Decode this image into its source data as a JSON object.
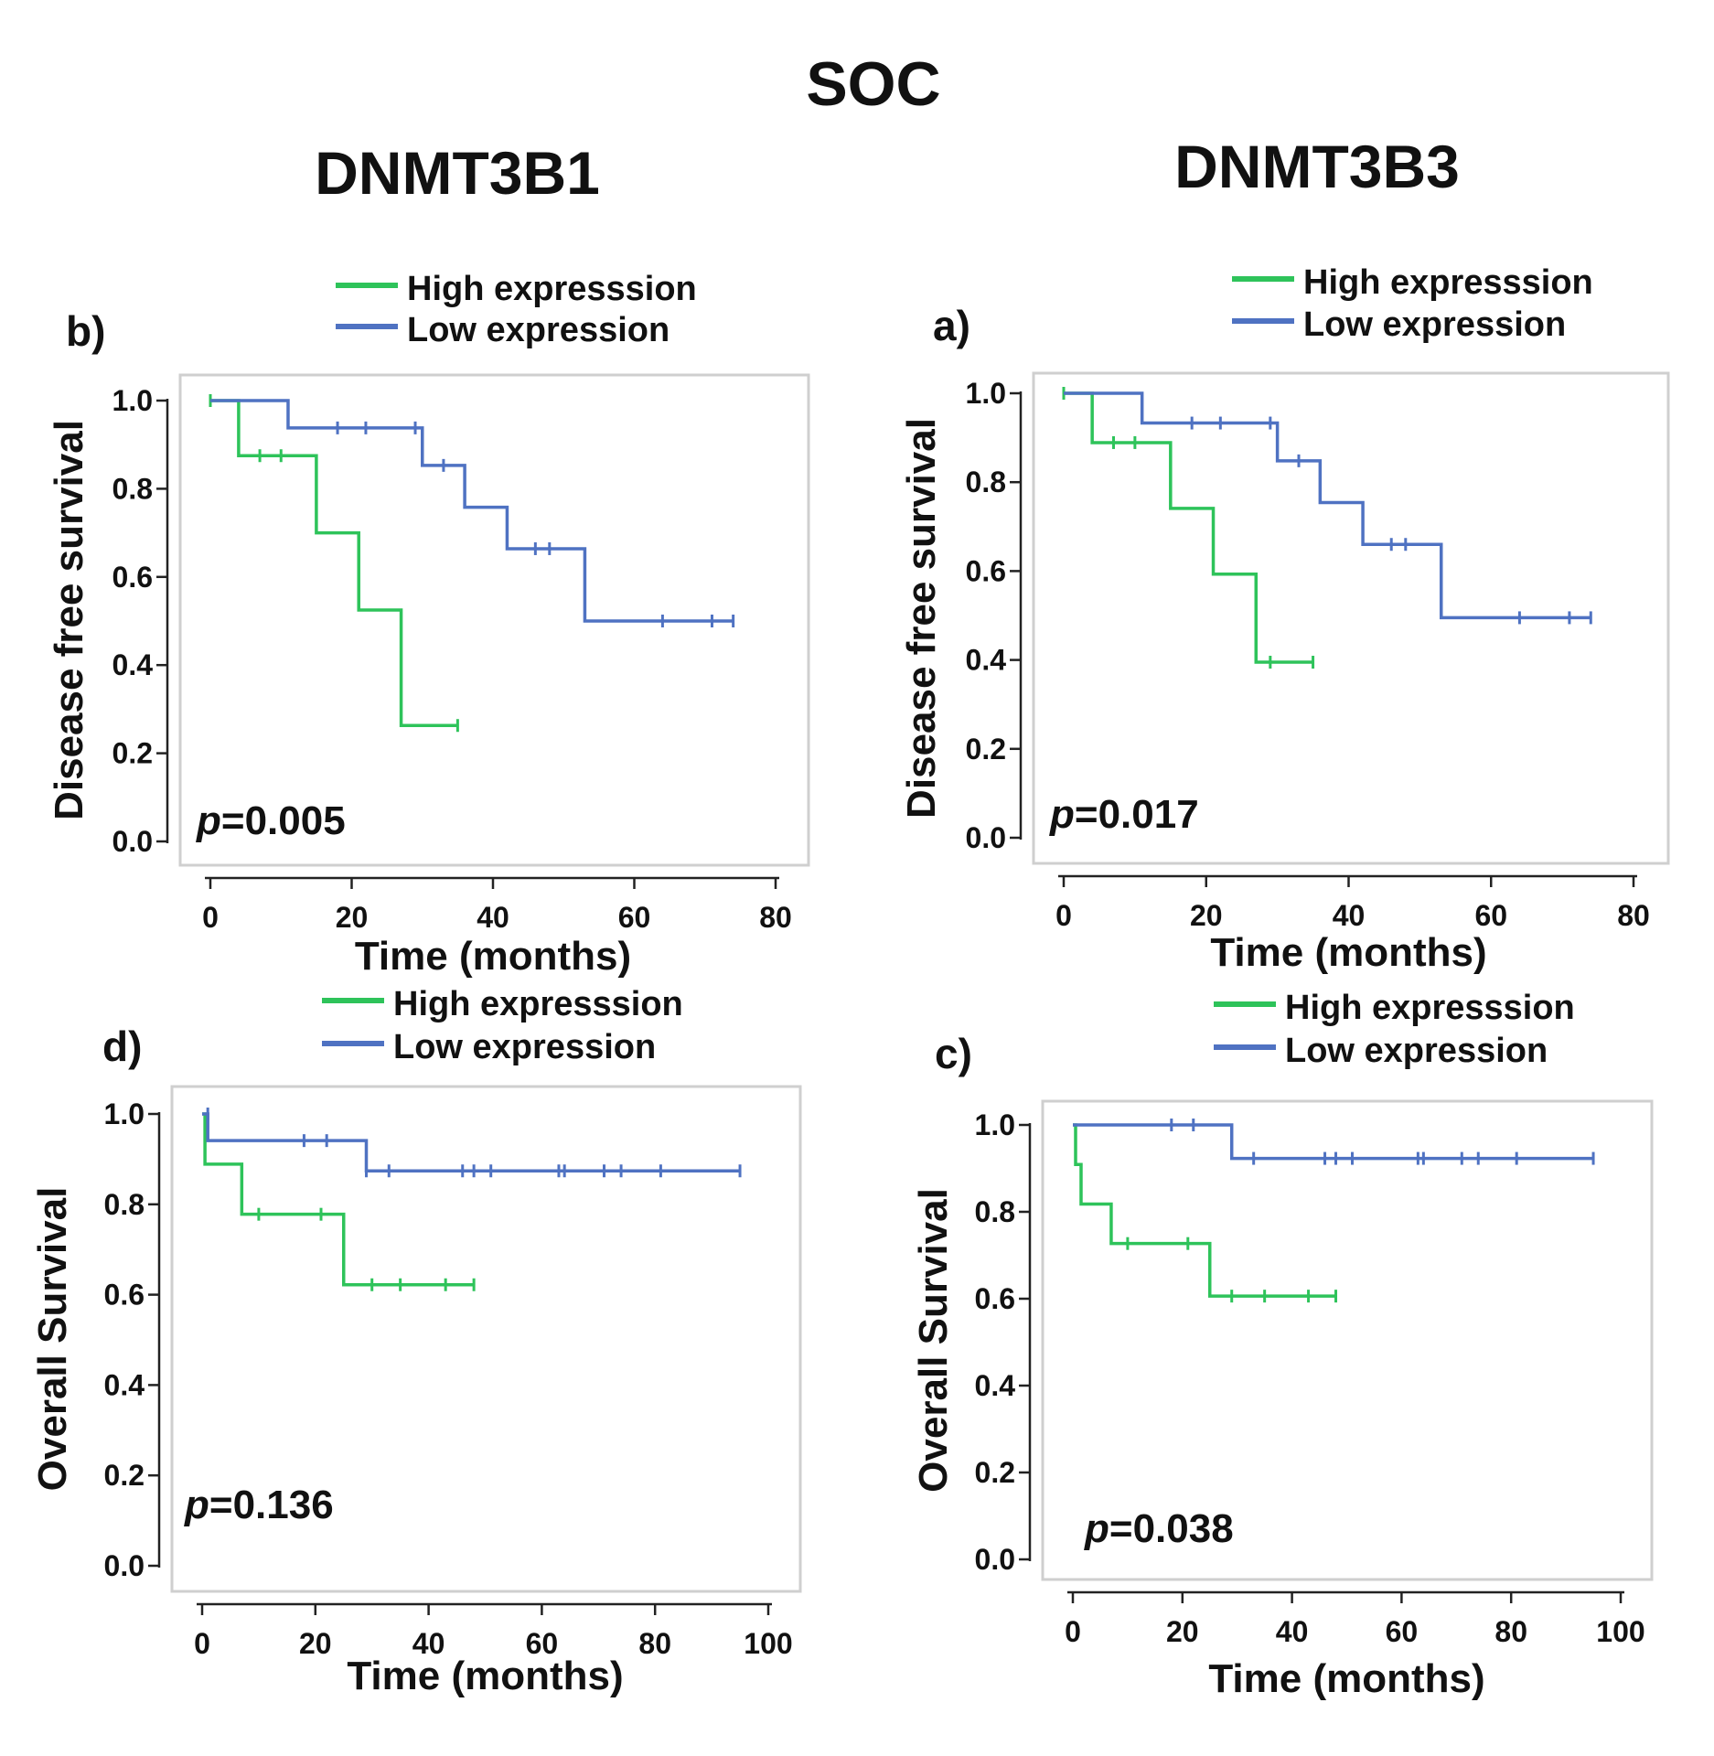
{
  "figure": {
    "title": "SOC",
    "columns": [
      "DNMT3B1",
      "DNMT3B3"
    ]
  },
  "colors": {
    "high": "#2ec35a",
    "low": "#4f72c2"
  },
  "chart_data": [
    {
      "panel": "b)",
      "column": "DNMT3B1",
      "type": "line",
      "kind": "kaplan-meier",
      "xlabel": "Time (months)",
      "ylabel": "Disease free survival",
      "xlim": [
        0,
        80
      ],
      "ylim": [
        0,
        1
      ],
      "xticks": [
        "0",
        "20",
        "40",
        "60",
        "80"
      ],
      "yticks": [
        "0.0",
        "0.2",
        "0.4",
        "0.6",
        "0.8",
        "1.0"
      ],
      "p_prefix": "p",
      "p_value": "=0.005",
      "legend": [
        "High expresssion",
        "Low expression"
      ],
      "series": [
        {
          "name": "High expresssion",
          "key": "high",
          "steps": [
            [
              0,
              1.0
            ],
            [
              4,
              0.875
            ],
            [
              15,
              0.7
            ],
            [
              21,
              0.525
            ],
            [
              27,
              0.263
            ],
            [
              35,
              0.263
            ]
          ],
          "censors": [
            [
              0,
              1.0
            ],
            [
              7,
              0.875
            ],
            [
              10,
              0.875
            ],
            [
              35,
              0.263
            ]
          ]
        },
        {
          "name": "Low expression",
          "key": "low",
          "steps": [
            [
              0,
              1.0
            ],
            [
              11,
              0.938
            ],
            [
              30,
              0.853
            ],
            [
              36,
              0.758
            ],
            [
              42,
              0.664
            ],
            [
              53,
              0.5
            ],
            [
              74,
              0.5
            ]
          ],
          "censors": [
            [
              18,
              0.938
            ],
            [
              22,
              0.938
            ],
            [
              29,
              0.938
            ],
            [
              33,
              0.853
            ],
            [
              46,
              0.664
            ],
            [
              48,
              0.664
            ],
            [
              64,
              0.5
            ],
            [
              71,
              0.5
            ],
            [
              74,
              0.5
            ]
          ]
        }
      ]
    },
    {
      "panel": "a)",
      "column": "DNMT3B3",
      "type": "line",
      "kind": "kaplan-meier",
      "xlabel": "Time (months)",
      "ylabel": "Disease free survival",
      "xlim": [
        0,
        80
      ],
      "ylim": [
        0,
        1
      ],
      "xticks": [
        "0",
        "20",
        "40",
        "60",
        "80"
      ],
      "yticks": [
        "0.0",
        "0.2",
        "0.4",
        "0.6",
        "0.8",
        "1.0"
      ],
      "p_prefix": "p",
      "p_value": "=0.017",
      "legend": [
        "High expresssion",
        "Low expression"
      ],
      "series": [
        {
          "name": "High expresssion",
          "key": "high",
          "steps": [
            [
              0,
              1.0
            ],
            [
              4,
              0.889
            ],
            [
              15,
              0.741
            ],
            [
              21,
              0.593
            ],
            [
              27,
              0.395
            ],
            [
              35,
              0.395
            ]
          ],
          "censors": [
            [
              0,
              1.0
            ],
            [
              7,
              0.889
            ],
            [
              10,
              0.889
            ],
            [
              29,
              0.395
            ],
            [
              35,
              0.395
            ]
          ]
        },
        {
          "name": "Low expression",
          "key": "low",
          "steps": [
            [
              0,
              1.0
            ],
            [
              11,
              0.933
            ],
            [
              30,
              0.848
            ],
            [
              36,
              0.754
            ],
            [
              42,
              0.66
            ],
            [
              53,
              0.495
            ],
            [
              74,
              0.495
            ]
          ],
          "censors": [
            [
              18,
              0.933
            ],
            [
              22,
              0.933
            ],
            [
              29,
              0.933
            ],
            [
              33,
              0.848
            ],
            [
              46,
              0.66
            ],
            [
              48,
              0.66
            ],
            [
              64,
              0.495
            ],
            [
              71,
              0.495
            ],
            [
              74,
              0.495
            ]
          ]
        }
      ]
    },
    {
      "panel": "d)",
      "column": "DNMT3B1",
      "type": "line",
      "kind": "kaplan-meier",
      "xlabel": "Time (months)",
      "ylabel": "Overall Survival",
      "xlim": [
        0,
        100
      ],
      "ylim": [
        0,
        1
      ],
      "xticks": [
        "0",
        "20",
        "40",
        "60",
        "80",
        "100"
      ],
      "yticks": [
        "0.0",
        "0.2",
        "0.4",
        "0.6",
        "0.8",
        "1.0"
      ],
      "p_prefix": "p",
      "p_value": "=0.136",
      "legend": [
        "High expresssion",
        "Low expression"
      ],
      "series": [
        {
          "name": "High expresssion",
          "key": "high",
          "steps": [
            [
              0,
              1.0
            ],
            [
              0.5,
              0.889
            ],
            [
              7,
              0.778
            ],
            [
              25,
              0.622
            ],
            [
              48,
              0.622
            ]
          ],
          "censors": [
            [
              10,
              0.778
            ],
            [
              21,
              0.778
            ],
            [
              30,
              0.622
            ],
            [
              35,
              0.622
            ],
            [
              43,
              0.622
            ],
            [
              48,
              0.622
            ]
          ]
        },
        {
          "name": "Low expression",
          "key": "low",
          "steps": [
            [
              0,
              1.0
            ],
            [
              1,
              0.941
            ],
            [
              29,
              0.874
            ],
            [
              95,
              0.874
            ]
          ],
          "censors": [
            [
              1,
              1.0
            ],
            [
              18,
              0.941
            ],
            [
              22,
              0.941
            ],
            [
              29,
              0.874
            ],
            [
              33,
              0.874
            ],
            [
              46,
              0.874
            ],
            [
              48,
              0.874
            ],
            [
              51,
              0.874
            ],
            [
              63,
              0.874
            ],
            [
              64,
              0.874
            ],
            [
              71,
              0.874
            ],
            [
              74,
              0.874
            ],
            [
              81,
              0.874
            ],
            [
              95,
              0.874
            ]
          ]
        }
      ]
    },
    {
      "panel": "c)",
      "column": "DNMT3B3",
      "type": "line",
      "kind": "kaplan-meier",
      "xlabel": "Time (months)",
      "ylabel": "Overall Survival",
      "xlim": [
        0,
        100
      ],
      "ylim": [
        0,
        1
      ],
      "xticks": [
        "0",
        "20",
        "40",
        "60",
        "80",
        "100"
      ],
      "yticks": [
        "0.0",
        "0.2",
        "0.4",
        "0.6",
        "0.8",
        "1.0"
      ],
      "p_prefix": "p",
      "p_value": "=0.038",
      "legend": [
        "High expresssion",
        "Low expression"
      ],
      "series": [
        {
          "name": "High expresssion",
          "key": "high",
          "steps": [
            [
              0,
              1.0
            ],
            [
              0.5,
              0.909
            ],
            [
              1.5,
              0.818
            ],
            [
              7,
              0.727
            ],
            [
              25,
              0.606
            ],
            [
              48,
              0.606
            ]
          ],
          "censors": [
            [
              10,
              0.727
            ],
            [
              21,
              0.727
            ],
            [
              29,
              0.606
            ],
            [
              35,
              0.606
            ],
            [
              43,
              0.606
            ],
            [
              48,
              0.606
            ]
          ]
        },
        {
          "name": "Low expression",
          "key": "low",
          "steps": [
            [
              0,
              1.0
            ],
            [
              29,
              0.923
            ],
            [
              95,
              0.923
            ]
          ],
          "censors": [
            [
              18,
              1.0
            ],
            [
              22,
              1.0
            ],
            [
              33,
              0.923
            ],
            [
              46,
              0.923
            ],
            [
              48,
              0.923
            ],
            [
              51,
              0.923
            ],
            [
              63,
              0.923
            ],
            [
              64,
              0.923
            ],
            [
              71,
              0.923
            ],
            [
              74,
              0.923
            ],
            [
              81,
              0.923
            ],
            [
              95,
              0.923
            ]
          ]
        }
      ]
    }
  ]
}
